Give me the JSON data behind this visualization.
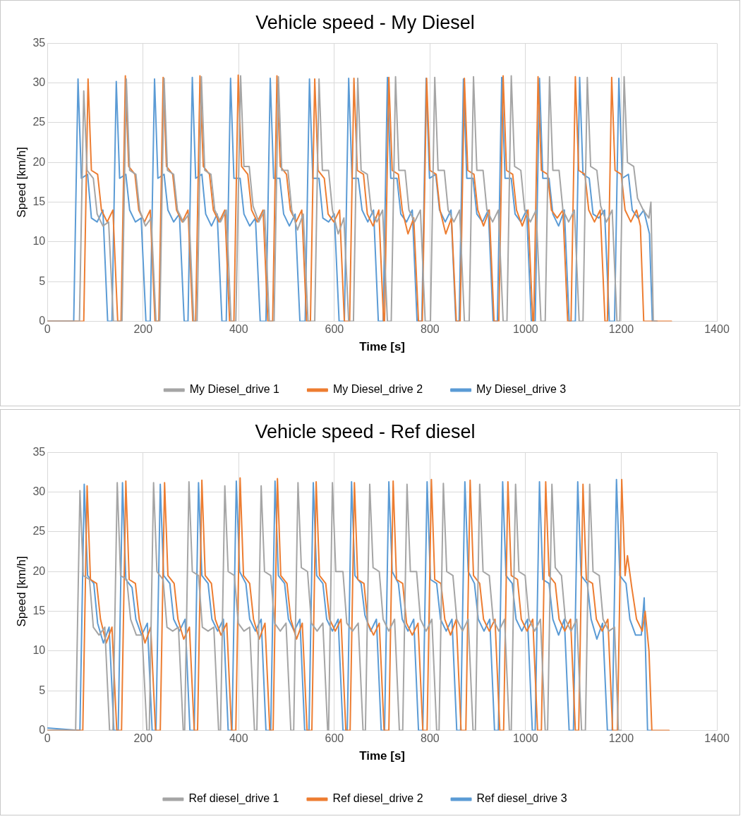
{
  "chart_data": [
    {
      "type": "line",
      "title": "Vehicle speed - My Diesel",
      "xlabel": "Time [s]",
      "ylabel": "Speed [km/h]",
      "xlim": [
        0,
        1400
      ],
      "xticks": [
        0,
        200,
        400,
        600,
        800,
        1000,
        1200,
        1400
      ],
      "ylim": [
        0,
        35
      ],
      "yticks": [
        0,
        5,
        10,
        15,
        20,
        25,
        30,
        35
      ],
      "grid": true,
      "legend": "bottom",
      "series": [
        {
          "name": "My Diesel_drive 1",
          "color": "#a5a5a5",
          "x": [
            0,
            67,
            76,
            83,
            96,
            104,
            116,
            128,
            138,
            156,
            165,
            172,
            185,
            193,
            205,
            217,
            227,
            235,
            244,
            251,
            264,
            272,
            284,
            296,
            306,
            313,
            322,
            329,
            342,
            350,
            362,
            374,
            384,
            394,
            404,
            411,
            422,
            430,
            442,
            454,
            464,
            474,
            483,
            490,
            503,
            511,
            523,
            535,
            545,
            559,
            568,
            575,
            588,
            596,
            608,
            620,
            630,
            640,
            649,
            656,
            669,
            677,
            689,
            701,
            711,
            719,
            728,
            735,
            748,
            756,
            768,
            780,
            790,
            801,
            810,
            817,
            830,
            838,
            850,
            862,
            872,
            882,
            891,
            898,
            911,
            919,
            931,
            943,
            953,
            961,
            970,
            977,
            990,
            998,
            1010,
            1022,
            1032,
            1041,
            1050,
            1057,
            1070,
            1078,
            1090,
            1102,
            1112,
            1120,
            1129,
            1136,
            1149,
            1157,
            1169,
            1181,
            1191,
            1197,
            1206,
            1213,
            1226,
            1234,
            1246,
            1258,
            1262,
            1267,
            1272
          ],
          "values": [
            0,
            0,
            29,
            19,
            18,
            13.5,
            12,
            12.5,
            0,
            0,
            30.5,
            19,
            18.5,
            14,
            12,
            13,
            0,
            0,
            30.6,
            19,
            18.5,
            14,
            12.5,
            13.5,
            0,
            0,
            30.8,
            19,
            18.5,
            14,
            12.5,
            14,
            0,
            0,
            30.9,
            19.5,
            19.5,
            14.5,
            12.5,
            14,
            0,
            0,
            30.8,
            19,
            19,
            14,
            11.5,
            13.5,
            0,
            0,
            30.5,
            19,
            19,
            14,
            11,
            13,
            0,
            0,
            30.6,
            19,
            18.5,
            14,
            12.5,
            14,
            0,
            0,
            30.8,
            19,
            19,
            14,
            12.5,
            14,
            0,
            0,
            30.7,
            19,
            19,
            14,
            12.5,
            14,
            0,
            0,
            30.8,
            19,
            19,
            14,
            12.5,
            14,
            0,
            0,
            30.9,
            19.5,
            19,
            14,
            12.5,
            14,
            0,
            0,
            30.8,
            19,
            19,
            14,
            12.5,
            14,
            0,
            0,
            30.7,
            19.5,
            19,
            14.5,
            12.5,
            14,
            0,
            0,
            30.8,
            20,
            19.5,
            15.5,
            14,
            13,
            15,
            0,
            0
          ]
        },
        {
          "name": "My Diesel_drive 2",
          "color": "#ed7d31",
          "x": [
            0,
            76,
            85,
            92,
            105,
            113,
            125,
            137,
            147,
            154,
            163,
            170,
            183,
            191,
            203,
            215,
            225,
            233,
            242,
            249,
            262,
            270,
            282,
            294,
            304,
            310,
            319,
            326,
            339,
            347,
            359,
            371,
            381,
            390,
            399,
            406,
            419,
            427,
            439,
            451,
            461,
            471,
            480,
            487,
            500,
            508,
            520,
            532,
            542,
            550,
            559,
            566,
            579,
            587,
            599,
            611,
            621,
            632,
            641,
            648,
            661,
            669,
            681,
            693,
            703,
            705,
            714,
            721,
            734,
            742,
            754,
            766,
            776,
            784,
            793,
            800,
            813,
            821,
            833,
            845,
            855,
            863,
            872,
            879,
            892,
            900,
            912,
            924,
            934,
            944,
            953,
            960,
            973,
            981,
            993,
            1005,
            1015,
            1017,
            1026,
            1033,
            1046,
            1054,
            1066,
            1078,
            1088,
            1095,
            1104,
            1111,
            1124,
            1132,
            1144,
            1156,
            1166,
            1171,
            1180,
            1187,
            1200,
            1208,
            1220,
            1232,
            1240,
            1247,
            1305
          ],
          "values": [
            0,
            0,
            30.5,
            19,
            18.5,
            14,
            12.5,
            14,
            0,
            0,
            30.9,
            19.5,
            18.5,
            14,
            12.5,
            14,
            0,
            0,
            30.7,
            19.5,
            18.5,
            14,
            12.5,
            14,
            0,
            0,
            30.9,
            19.5,
            18.5,
            14,
            12.5,
            14,
            0,
            0,
            31,
            19.5,
            18.5,
            14,
            12.5,
            14,
            0,
            0,
            30.9,
            19.5,
            18.5,
            14,
            12.5,
            14,
            0,
            0,
            30.5,
            19,
            18,
            13.5,
            12.5,
            14,
            0,
            0,
            30.6,
            19,
            18.5,
            13.5,
            12,
            14,
            0,
            0,
            30.7,
            19,
            18.5,
            14,
            11,
            13,
            0,
            0,
            30.6,
            19,
            18.5,
            14,
            11,
            13,
            0,
            0,
            30.6,
            19,
            18.5,
            14,
            12,
            14,
            0,
            0,
            30.9,
            19,
            18.5,
            14,
            12,
            14,
            0,
            0,
            30.8,
            19,
            18.5,
            14,
            13,
            14,
            0,
            0,
            30.8,
            19,
            18.5,
            14,
            12.5,
            14,
            0,
            0,
            30.7,
            19,
            18.5,
            14,
            12.5,
            14,
            12,
            0,
            0
          ]
        },
        {
          "name": "My Diesel_drive 3",
          "color": "#5b9bd5",
          "x": [
            0,
            55,
            64,
            71,
            84,
            92,
            104,
            116,
            126,
            135,
            144,
            151,
            164,
            172,
            184,
            196,
            206,
            215,
            224,
            231,
            244,
            252,
            264,
            276,
            286,
            294,
            303,
            310,
            323,
            331,
            343,
            355,
            365,
            374,
            383,
            390,
            403,
            411,
            423,
            435,
            445,
            457,
            466,
            473,
            486,
            494,
            506,
            518,
            528,
            539,
            548,
            555,
            568,
            576,
            588,
            600,
            610,
            621,
            630,
            637,
            650,
            658,
            670,
            682,
            692,
            702,
            711,
            718,
            731,
            739,
            751,
            763,
            773,
            783,
            792,
            799,
            812,
            820,
            832,
            844,
            854,
            861,
            870,
            877,
            890,
            898,
            910,
            922,
            932,
            941,
            950,
            957,
            970,
            978,
            990,
            1002,
            1012,
            1020,
            1029,
            1036,
            1049,
            1057,
            1069,
            1081,
            1091,
            1104,
            1113,
            1120,
            1133,
            1141,
            1153,
            1165,
            1175,
            1186,
            1195,
            1202,
            1215,
            1223,
            1235,
            1247,
            1259,
            1265,
            1275
          ],
          "values": [
            0,
            0,
            30.5,
            18,
            18.5,
            13,
            12.5,
            14,
            0,
            0,
            30.2,
            18,
            18.5,
            14,
            12.5,
            13,
            0,
            0,
            30.5,
            18,
            18.5,
            14,
            12.5,
            13.5,
            0,
            0,
            30.7,
            18,
            18.5,
            13.5,
            12,
            13.5,
            0,
            0,
            30.6,
            18,
            18,
            13.5,
            12,
            13,
            0,
            0,
            30.6,
            18,
            18,
            13.5,
            12,
            13.5,
            0,
            0,
            30.5,
            18,
            18,
            13,
            12.5,
            13.5,
            0,
            0,
            30.6,
            18,
            18,
            14,
            12.5,
            14,
            0,
            0,
            30.7,
            18,
            18,
            13.5,
            12.5,
            14,
            0,
            0,
            30.6,
            18,
            18.5,
            14,
            12.5,
            14,
            0,
            0,
            30.5,
            18,
            18,
            13.5,
            12.5,
            14,
            0,
            0,
            30.7,
            18,
            18,
            13.5,
            12.5,
            14,
            0,
            0,
            30.6,
            18,
            18,
            13.5,
            12,
            14,
            0,
            0,
            30.7,
            18.5,
            18,
            13.5,
            13,
            14,
            0,
            0,
            30.6,
            18,
            18.5,
            14,
            13,
            14,
            11,
            0,
            0
          ]
        }
      ]
    },
    {
      "type": "line",
      "title": "Vehicle speed - Ref diesel",
      "xlabel": "Time [s]",
      "ylabel": "Speed [km/h]",
      "xlim": [
        0,
        1400
      ],
      "xticks": [
        0,
        200,
        400,
        600,
        800,
        1000,
        1200,
        1400
      ],
      "ylim": [
        0,
        35
      ],
      "yticks": [
        0,
        5,
        10,
        15,
        20,
        25,
        30,
        35
      ],
      "grid": true,
      "legend": "bottom",
      "series": [
        {
          "name": "Ref diesel_drive 1",
          "color": "#a5a5a5",
          "x": [
            0,
            59,
            68,
            75,
            88,
            96,
            108,
            120,
            130,
            137,
            146,
            153,
            166,
            174,
            186,
            198,
            208,
            213,
            222,
            229,
            242,
            250,
            262,
            274,
            284,
            287,
            296,
            303,
            316,
            324,
            336,
            348,
            358,
            362,
            371,
            378,
            391,
            399,
            411,
            423,
            433,
            438,
            447,
            454,
            467,
            475,
            487,
            499,
            509,
            515,
            524,
            531,
            544,
            552,
            564,
            576,
            586,
            588,
            596,
            603,
            618,
            626,
            638,
            650,
            660,
            665,
            674,
            681,
            694,
            702,
            714,
            726,
            736,
            743,
            752,
            759,
            772,
            780,
            792,
            804,
            814,
            819,
            828,
            835,
            848,
            856,
            868,
            880,
            890,
            895,
            904,
            911,
            924,
            932,
            944,
            956,
            966,
            970,
            979,
            986,
            999,
            1007,
            1019,
            1031,
            1041,
            1046,
            1055,
            1062,
            1075,
            1083,
            1095,
            1107,
            1117,
            1125,
            1134,
            1141,
            1154,
            1162,
            1174,
            1186,
            1194,
            1200
          ],
          "values": [
            0,
            0,
            30.2,
            19.5,
            19,
            13,
            12,
            13,
            0,
            0,
            31.2,
            19.5,
            19,
            14,
            12,
            12,
            0,
            0,
            31.2,
            20,
            19,
            13,
            12.5,
            13,
            0,
            0,
            31.3,
            20,
            19.5,
            13,
            12.5,
            13,
            0,
            0,
            30.8,
            20,
            19.5,
            13.5,
            12.5,
            13,
            0,
            0,
            30.8,
            20,
            19.5,
            13.5,
            12.5,
            13.5,
            0,
            0,
            31.2,
            20.5,
            20,
            13.5,
            12.5,
            13.5,
            0,
            0,
            31.2,
            20,
            20,
            13.5,
            12.5,
            13.5,
            0,
            0,
            31,
            20.5,
            20,
            14,
            12.5,
            14,
            0,
            0,
            31,
            20,
            20,
            14,
            12.5,
            14,
            0,
            0,
            31.1,
            20,
            19.5,
            14,
            12.5,
            14,
            0,
            0,
            31,
            20,
            19.5,
            14,
            12.5,
            14,
            0,
            0,
            31,
            20,
            19.5,
            14,
            12.5,
            14,
            0,
            0,
            31,
            20.5,
            19.5,
            14,
            12.5,
            14,
            0,
            0,
            31,
            20,
            19.5,
            14,
            12.5,
            13,
            0,
            0
          ]
        },
        {
          "name": "Ref diesel_drive 2",
          "color": "#ed7d31",
          "x": [
            0,
            74,
            83,
            90,
            103,
            111,
            123,
            135,
            145,
            155,
            164,
            171,
            184,
            192,
            204,
            216,
            226,
            236,
            245,
            252,
            265,
            273,
            285,
            297,
            307,
            314,
            323,
            330,
            343,
            351,
            363,
            375,
            385,
            394,
            403,
            410,
            423,
            431,
            443,
            455,
            465,
            472,
            481,
            488,
            501,
            509,
            521,
            533,
            543,
            553,
            562,
            569,
            582,
            590,
            602,
            614,
            624,
            633,
            642,
            649,
            662,
            670,
            682,
            694,
            704,
            714,
            723,
            730,
            743,
            751,
            763,
            775,
            785,
            794,
            803,
            810,
            823,
            831,
            843,
            855,
            865,
            875,
            884,
            891,
            904,
            912,
            924,
            936,
            946,
            954,
            963,
            970,
            983,
            991,
            1003,
            1015,
            1025,
            1033,
            1042,
            1049,
            1062,
            1070,
            1082,
            1094,
            1104,
            1111,
            1120,
            1127,
            1140,
            1148,
            1160,
            1172,
            1182,
            1192,
            1201,
            1208,
            1213,
            1222,
            1232,
            1244,
            1250,
            1258,
            1264,
            1300
          ],
          "values": [
            0,
            0,
            30.8,
            19,
            18.5,
            14,
            11,
            13,
            0,
            0,
            31.4,
            19,
            18.5,
            14,
            11,
            13,
            0,
            0,
            31.2,
            19.5,
            18.5,
            14,
            11.5,
            13,
            0,
            0,
            31.5,
            19.5,
            18.5,
            14,
            12,
            13.5,
            0,
            0,
            31.8,
            19.5,
            18.5,
            14,
            11.5,
            13.5,
            0,
            0,
            31.7,
            19.5,
            18.5,
            14,
            11.5,
            13.5,
            0,
            0,
            31.3,
            19.5,
            18.5,
            14,
            12.5,
            14,
            0,
            0,
            31.2,
            19,
            18.5,
            13.5,
            12,
            13.5,
            0,
            0,
            31.4,
            19,
            18.5,
            13.5,
            12,
            13.5,
            0,
            0,
            31.6,
            19,
            18.5,
            14,
            12,
            14,
            0,
            0,
            31.5,
            19.5,
            18.5,
            14,
            12.5,
            14,
            0,
            0,
            31.3,
            19.5,
            19,
            14,
            12.5,
            14,
            0,
            0,
            31.3,
            19.5,
            18.5,
            14,
            12.5,
            14,
            0,
            0,
            31,
            19,
            18.5,
            14,
            12.5,
            14,
            0,
            0,
            31.6,
            19.5,
            22,
            18,
            14,
            12.5,
            15,
            10,
            0,
            0
          ]
        },
        {
          "name": "Ref diesel_drive 3",
          "color": "#5b9bd5",
          "x": [
            0,
            68,
            77,
            84,
            97,
            105,
            117,
            129,
            139,
            148,
            157,
            164,
            177,
            185,
            197,
            209,
            219,
            227,
            236,
            243,
            256,
            264,
            276,
            288,
            298,
            307,
            316,
            323,
            336,
            344,
            356,
            368,
            378,
            386,
            395,
            402,
            415,
            423,
            435,
            447,
            457,
            467,
            476,
            483,
            496,
            504,
            516,
            528,
            538,
            547,
            556,
            563,
            576,
            584,
            596,
            608,
            618,
            627,
            636,
            643,
            656,
            664,
            676,
            688,
            698,
            705,
            714,
            721,
            734,
            742,
            754,
            766,
            776,
            785,
            794,
            801,
            814,
            822,
            834,
            846,
            856,
            864,
            873,
            880,
            893,
            901,
            913,
            925,
            935,
            943,
            952,
            959,
            972,
            980,
            992,
            1004,
            1014,
            1020,
            1029,
            1036,
            1049,
            1057,
            1069,
            1081,
            1091,
            1100,
            1109,
            1116,
            1129,
            1137,
            1149,
            1161,
            1171,
            1181,
            1190,
            1197,
            1210,
            1218,
            1230,
            1242,
            1248,
            1255,
            1262
          ],
          "values": [
            0.3,
            0,
            31,
            19.5,
            18.5,
            13.5,
            11,
            13,
            0,
            0,
            31.2,
            19,
            18,
            14,
            12,
            13.5,
            0,
            0,
            31,
            19.5,
            18.5,
            14,
            12.5,
            14,
            0,
            0,
            31.2,
            19.5,
            18.5,
            14,
            12.5,
            14,
            0,
            0,
            31.4,
            20,
            18.5,
            14,
            12.5,
            14,
            0,
            0,
            31.4,
            19.5,
            18.5,
            14,
            12.5,
            14,
            0,
            0,
            31.2,
            19.5,
            18.5,
            14,
            12.5,
            14,
            0,
            0,
            31.3,
            19.5,
            18.5,
            14.5,
            12.5,
            14,
            0,
            0,
            31.3,
            20,
            18.5,
            14,
            12.5,
            14,
            0,
            0,
            31.3,
            19,
            18.5,
            14,
            12.5,
            14,
            0,
            0,
            31.3,
            20,
            18.5,
            14,
            12.5,
            14,
            0,
            0,
            31.3,
            19.5,
            18.5,
            14,
            12.5,
            14,
            0,
            0,
            31.3,
            19,
            18.5,
            14,
            12,
            14,
            0,
            0,
            31.3,
            19.5,
            18.5,
            14,
            11.5,
            13.5,
            0,
            0,
            31.6,
            19.5,
            18.5,
            14,
            12,
            12,
            16.7,
            0,
            0
          ]
        }
      ]
    }
  ]
}
